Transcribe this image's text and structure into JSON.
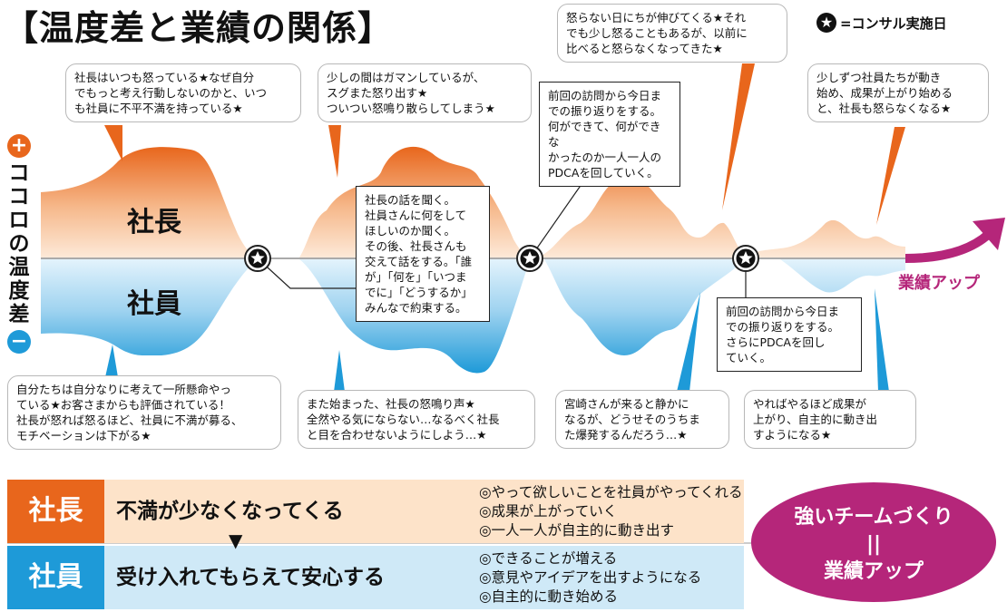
{
  "title": "【温度差と業績の関係】",
  "legend": {
    "star": "★",
    "label": "=コンサル実施日"
  },
  "axis": {
    "plus": "+",
    "vertical_label": "ココロの温度差",
    "minus": "−"
  },
  "wave_labels": {
    "president": "社長",
    "employees": "社員"
  },
  "growth_label": "業績アップ",
  "bubbles_top": [
    "社長はいつも怒っている★なぜ自分\nでもっと考え行動しないのかと、いつ\nも社員に不平不満を持っている★",
    "少しの間はガマンしているが、\nスグまた怒り出す★\nついつい怒鳴り散らしてしまう★",
    "怒らない日にちが伸びてくる★それ\nでも少し怒ることもあるが、以前に\n比べると怒らなくなってきた★",
    "少しずつ社員たちが動き\n始め、成果が上がり始める\nと、社長も怒らなくなる★"
  ],
  "bubbles_bottom": [
    "自分たちは自分なりに考えて一所懸命やっ\nている★お客さまからも評価されている！\n社長が怒れば怒るほど、社員に不満が募る、\nモチベーションは下がる★",
    "また始まった、社長の怒鳴り声★\n全然やる気にならない…なるべく社長\nと目を合わせないようにしよう…★",
    "宮崎さんが来ると静かに\nなるが、どうせそのうちま\nた爆発するんだろう…★",
    "やればやるほど成果が\n上がり、自主的に動き出\nすようになる★"
  ],
  "consult_boxes": [
    "社長の話を聞く。\n社員さんに何をして\nほしいのか聞く。\nその後、社長さんも\n交えて話をする。「誰\nが」「何を」「いつま\nでに」「どうするか」\nみんなで約束する。",
    "前回の訪問から今日ま\nでの振り返りをする。\n何ができて、何ができな\nかったのか一人一人の\nPDCAを回していく。",
    "前回の訪問から今日ま\nでの振り返りをする。\nさらにPDCAを回し\nていく。"
  ],
  "summary": {
    "president": {
      "tag": "社長",
      "text": "不満が少なくなってくる",
      "points": [
        "◎やって欲しいことを社員がやってくれる",
        "◎成果が上がっていく",
        "◎一人一人が自主的に動き出す"
      ]
    },
    "employees": {
      "tag": "社員",
      "text": "受け入れてもらえて安心する",
      "points": [
        "◎できることが増える",
        "◎意見やアイデアを出すようになる",
        "◎自主的に動き始める"
      ]
    },
    "arrow": "▼",
    "result": [
      "強いチームづくり",
      "||",
      "業績アップ"
    ]
  },
  "colors": {
    "president": "#e8661c",
    "employees": "#1e9ad8",
    "president_bg": "#fde3c9",
    "employees_bg": "#cfe9f7",
    "accent": "#b5267a"
  }
}
